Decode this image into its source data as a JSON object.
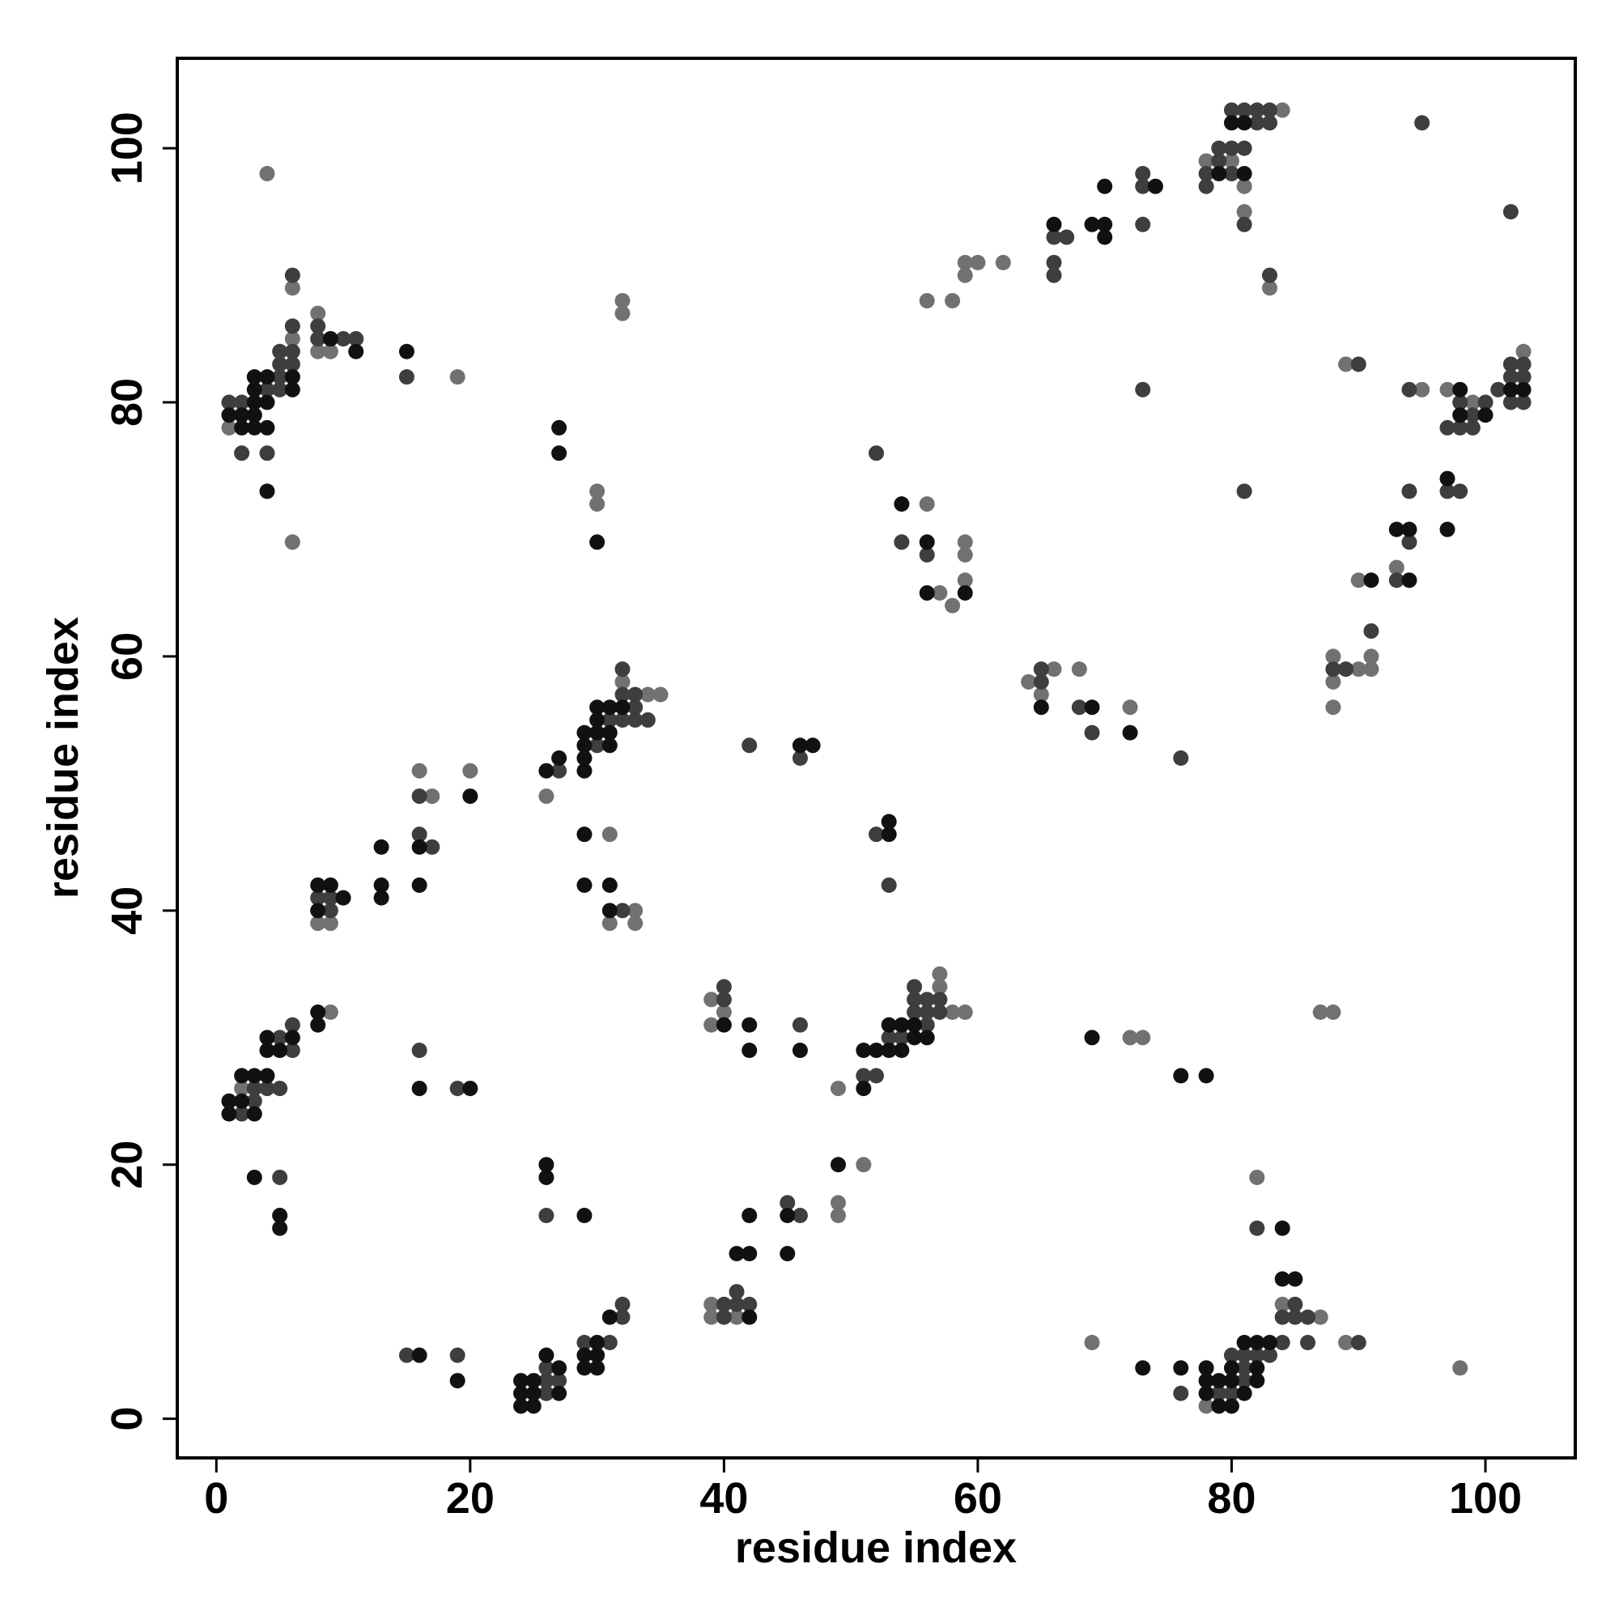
{
  "chart_data": {
    "type": "scatter",
    "xlabel": "residue index",
    "ylabel": "residue index",
    "xlim": [
      -3.08,
      107.08
    ],
    "ylim": [
      -3.08,
      107.08
    ],
    "xticks": [
      0,
      20,
      40,
      60,
      80,
      100
    ],
    "yticks": [
      0,
      20,
      40,
      60,
      80,
      100
    ],
    "series": [
      {
        "color": "#717171",
        "x": [
          4,
          1,
          6,
          6,
          8,
          19,
          32,
          32,
          30,
          30,
          8,
          9,
          9,
          20,
          16,
          17,
          26,
          31,
          33,
          31,
          33,
          32,
          35,
          34,
          39,
          39,
          40,
          39,
          39,
          41,
          49,
          49,
          49,
          51,
          57,
          57,
          58,
          59,
          56,
          59,
          59,
          59,
          58,
          57,
          56,
          58,
          59,
          59,
          60,
          62,
          64,
          65,
          66,
          68,
          72,
          72,
          73,
          69,
          78,
          78,
          80,
          81,
          81,
          84,
          83,
          82,
          84,
          87,
          89,
          87,
          88,
          98,
          88,
          88,
          88,
          90,
          91,
          91,
          90,
          93,
          97,
          95,
          99,
          89,
          103,
          6,
          8,
          9,
          2,
          26
        ],
        "y": [
          98,
          78,
          69,
          89,
          87,
          82,
          88,
          87,
          73,
          72,
          39,
          39,
          32,
          51,
          51,
          49,
          49,
          46,
          40,
          39,
          39,
          58,
          57,
          57,
          31,
          33,
          32,
          8,
          9,
          8,
          26,
          17,
          16,
          20,
          35,
          34,
          32,
          32,
          72,
          69,
          68,
          66,
          64,
          65,
          88,
          88,
          90,
          91,
          91,
          91,
          58,
          57,
          59,
          59,
          56,
          30,
          30,
          6,
          1,
          99,
          99,
          97,
          95,
          103,
          89,
          19,
          9,
          8,
          6,
          32,
          32,
          4,
          56,
          58,
          60,
          59,
          59,
          60,
          66,
          67,
          81,
          81,
          80,
          83,
          84,
          85,
          84,
          84,
          26,
          2
        ]
      },
      {
        "color": "#3e3e3e",
        "x": [
          26,
          26,
          27,
          26,
          29,
          31,
          32,
          32,
          15,
          19,
          26,
          5,
          2,
          3,
          3,
          4,
          5,
          5,
          6,
          6,
          16,
          19,
          8,
          9,
          9,
          17,
          16,
          16,
          27,
          30,
          33,
          34,
          31,
          32,
          33,
          32,
          33,
          32,
          32,
          1,
          2,
          2,
          4,
          4,
          5,
          5,
          5,
          5,
          6,
          6,
          6,
          8,
          8,
          10,
          11,
          6,
          15,
          40,
          40,
          46,
          40,
          40,
          41,
          42,
          41,
          45,
          46,
          42,
          46,
          51,
          52,
          53,
          54,
          55,
          56,
          55,
          56,
          57,
          55,
          57,
          56,
          52,
          53,
          52,
          54,
          56,
          66,
          66,
          66,
          67,
          73,
          73,
          73,
          73,
          65,
          65,
          69,
          76,
          68,
          76,
          79,
          80,
          81,
          81,
          80,
          81,
          82,
          83,
          84,
          82,
          84,
          85,
          86,
          85,
          86,
          90,
          78,
          80,
          78,
          79,
          79,
          80,
          81,
          80,
          81,
          82,
          83,
          82,
          83,
          81,
          83,
          95,
          102,
          81,
          88,
          89,
          91,
          93,
          94,
          94,
          97,
          98,
          97,
          98,
          99,
          99,
          98,
          100,
          101,
          94,
          90,
          102,
          103,
          102,
          103,
          102,
          103
        ],
        "y": [
          2,
          3,
          3,
          4,
          6,
          6,
          8,
          9,
          5,
          5,
          16,
          19,
          24,
          25,
          26,
          26,
          26,
          30,
          29,
          31,
          29,
          26,
          41,
          41,
          40,
          45,
          46,
          49,
          51,
          53,
          55,
          55,
          55,
          55,
          56,
          57,
          57,
          59,
          40,
          80,
          80,
          76,
          76,
          81,
          81,
          82,
          83,
          84,
          83,
          84,
          86,
          85,
          86,
          85,
          85,
          90,
          82,
          33,
          34,
          31,
          8,
          9,
          9,
          9,
          10,
          17,
          16,
          53,
          52,
          27,
          27,
          30,
          30,
          32,
          32,
          33,
          33,
          33,
          34,
          32,
          31,
          46,
          42,
          76,
          69,
          68,
          90,
          91,
          93,
          93,
          94,
          97,
          98,
          81,
          58,
          59,
          54,
          52,
          56,
          2,
          2,
          2,
          3,
          4,
          5,
          5,
          5,
          5,
          6,
          15,
          8,
          8,
          8,
          9,
          6,
          6,
          97,
          98,
          98,
          99,
          100,
          100,
          100,
          103,
          103,
          103,
          103,
          102,
          102,
          94,
          90,
          102,
          95,
          73,
          59,
          59,
          62,
          66,
          69,
          73,
          73,
          73,
          78,
          78,
          78,
          79,
          80,
          80,
          81,
          81,
          83,
          80,
          80,
          82,
          82,
          83,
          83
        ]
      },
      {
        "color": "#111111",
        "x": [
          24,
          25,
          24,
          25,
          24,
          25,
          27,
          26,
          27,
          29,
          30,
          29,
          30,
          30,
          31,
          16,
          19,
          26,
          26,
          29,
          3,
          5,
          5,
          1,
          3,
          1,
          2,
          2,
          3,
          4,
          4,
          4,
          5,
          6,
          8,
          8,
          16,
          20,
          8,
          9,
          8,
          10,
          13,
          13,
          13,
          16,
          16,
          20,
          26,
          27,
          29,
          29,
          29,
          29,
          30,
          30,
          31,
          31,
          31,
          30,
          32,
          29,
          29,
          31,
          31,
          3,
          3,
          3,
          4,
          4,
          2,
          3,
          4,
          1,
          2,
          3,
          6,
          6,
          4,
          9,
          11,
          15,
          27,
          27,
          30,
          40,
          42,
          42,
          46,
          42,
          41,
          42,
          45,
          42,
          45,
          49,
          46,
          47,
          51,
          51,
          52,
          53,
          54,
          53,
          54,
          55,
          56,
          55,
          53,
          53,
          54,
          56,
          56,
          59,
          65,
          69,
          72,
          66,
          69,
          70,
          70,
          70,
          74,
          69,
          76,
          78,
          73,
          76,
          78,
          79,
          80,
          78,
          79,
          80,
          80,
          82,
          81,
          82,
          81,
          82,
          83,
          84,
          84,
          85,
          78,
          80,
          81,
          81,
          79,
          94,
          91,
          93,
          94,
          97,
          97,
          98,
          100,
          98,
          102,
          103
        ],
        "y": [
          1,
          1,
          2,
          2,
          3,
          3,
          2,
          5,
          4,
          4,
          4,
          5,
          5,
          6,
          8,
          5,
          3,
          20,
          19,
          16,
          19,
          16,
          15,
          24,
          24,
          25,
          25,
          27,
          27,
          27,
          29,
          30,
          29,
          30,
          31,
          32,
          26,
          26,
          42,
          42,
          40,
          41,
          41,
          42,
          45,
          42,
          45,
          49,
          51,
          52,
          51,
          52,
          53,
          54,
          54,
          56,
          56,
          53,
          54,
          55,
          56,
          46,
          42,
          42,
          40,
          80,
          81,
          82,
          82,
          80,
          78,
          78,
          78,
          79,
          79,
          79,
          81,
          82,
          73,
          85,
          84,
          84,
          78,
          76,
          69,
          31,
          31,
          29,
          29,
          8,
          13,
          13,
          13,
          16,
          16,
          20,
          53,
          53,
          26,
          29,
          29,
          29,
          29,
          31,
          31,
          31,
          30,
          30,
          47,
          46,
          72,
          69,
          65,
          65,
          56,
          56,
          54,
          94,
          94,
          94,
          93,
          97,
          97,
          30,
          27,
          27,
          4,
          4,
          2,
          1,
          1,
          3,
          3,
          3,
          4,
          3,
          2,
          4,
          6,
          6,
          6,
          15,
          11,
          11,
          4,
          102,
          102,
          98,
          98,
          66,
          66,
          70,
          70,
          70,
          74,
          81,
          79,
          79,
          81,
          81
        ]
      }
    ]
  }
}
